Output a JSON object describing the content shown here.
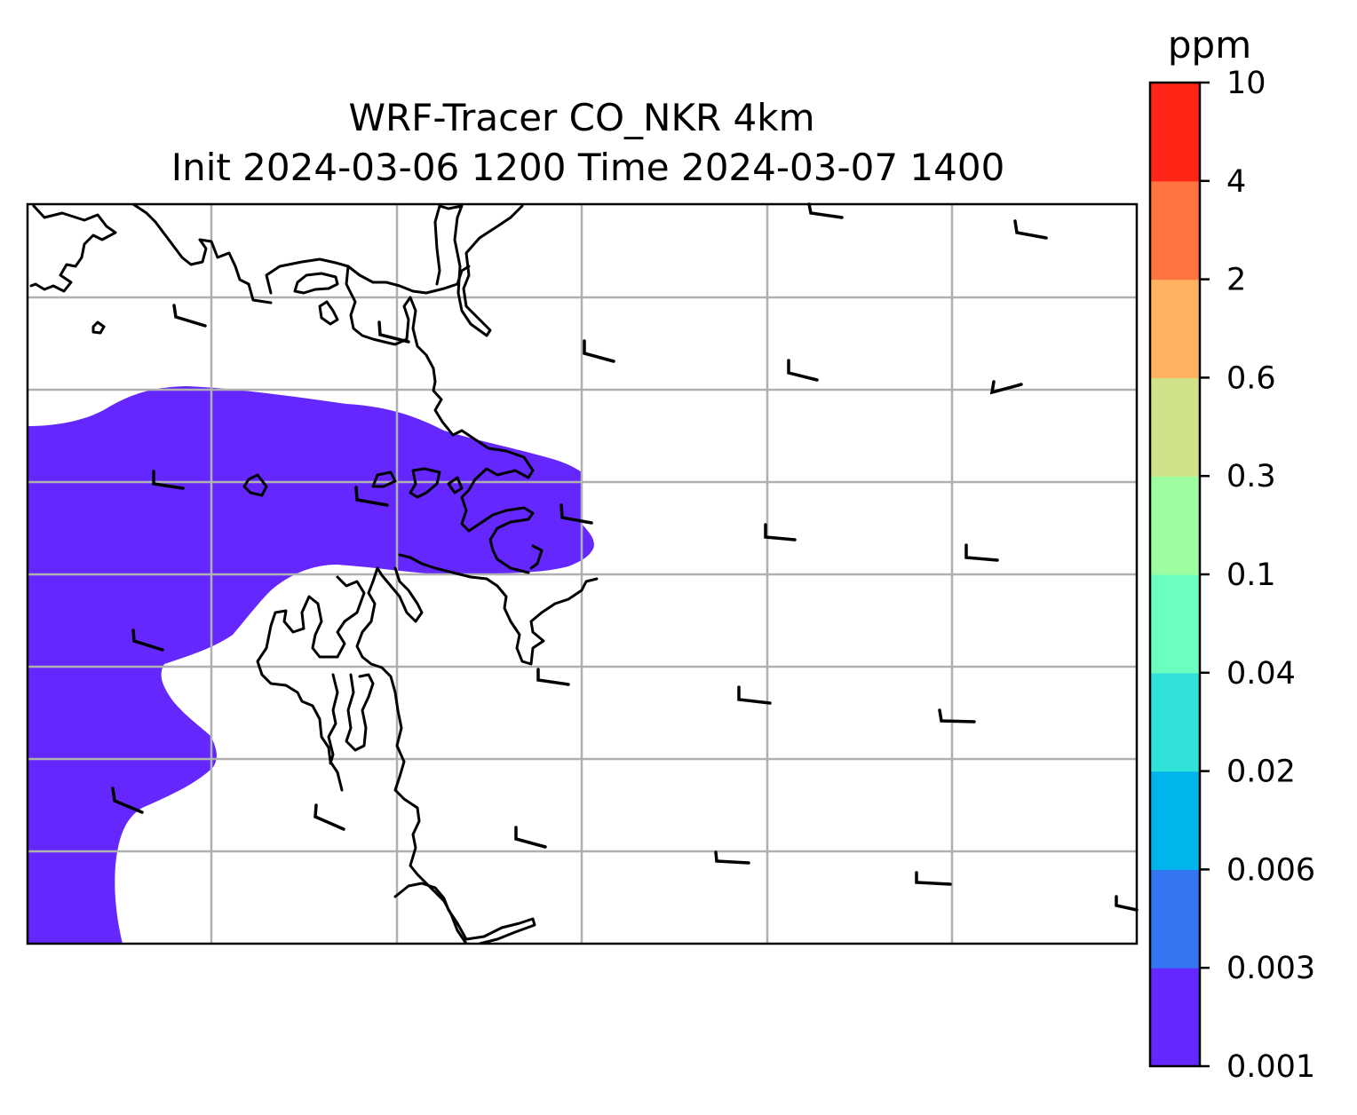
{
  "title": {
    "line1": "WRF-Tracer CO_NKR 4km",
    "line2": "Init 2024-03-06 1200 Time 2024-03-07 1400"
  },
  "colorbar": {
    "unit_label": "ppm",
    "levels": [
      "0.001",
      "0.003",
      "0.006",
      "0.02",
      "0.04",
      "0.1",
      "0.3",
      "0.6",
      "2",
      "4",
      "10"
    ],
    "colors": [
      "#6427fe",
      "#3476f1",
      "#00b5eb",
      "#31e2d8",
      "#6bfec0",
      "#9cfea1",
      "#d0e287",
      "#ffb360",
      "#ff7340",
      "#ff2618"
    ]
  },
  "map": {
    "plume_color": "#6427fe",
    "coastline_color": "#000000",
    "grid_color": "#b0b0b0",
    "wind_barb_icon": "wind-barb-icon"
  }
}
